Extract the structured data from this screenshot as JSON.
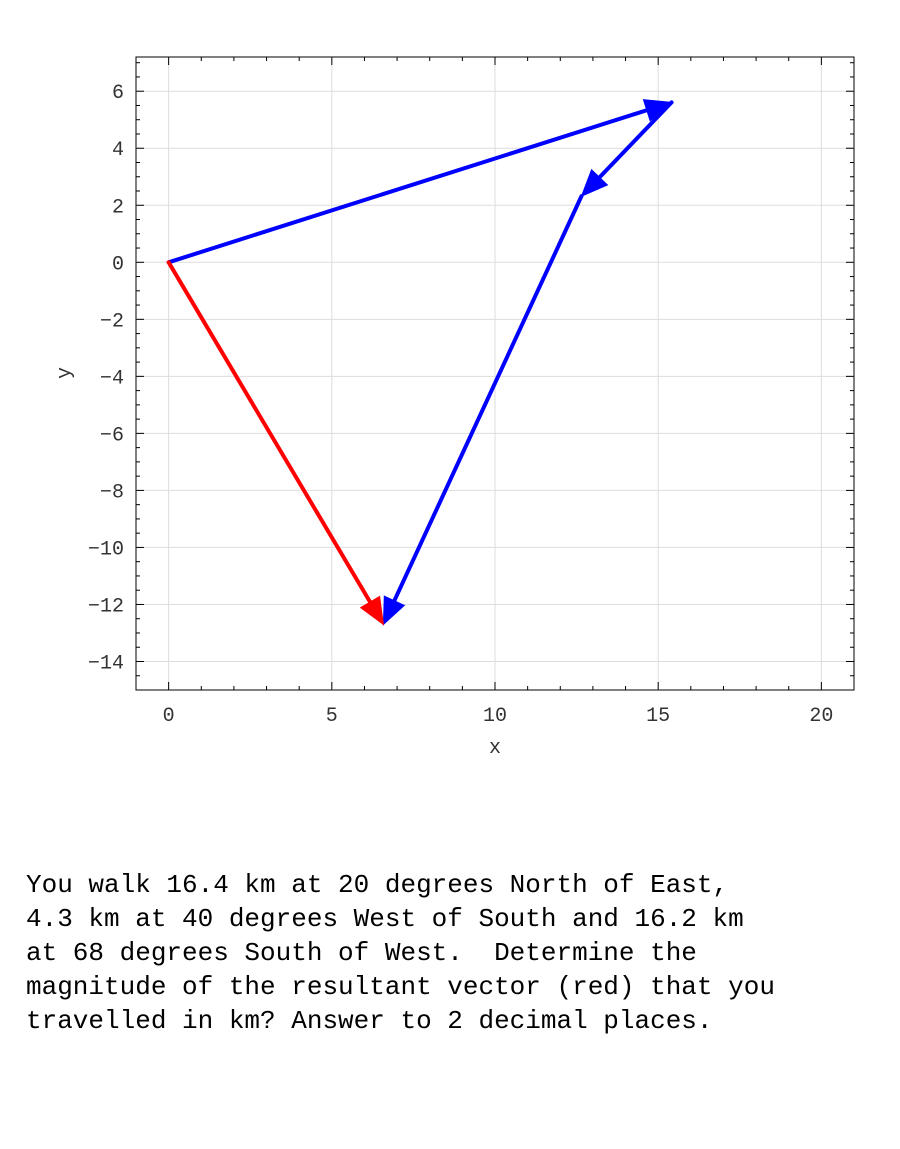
{
  "chart_data": {
    "type": "vector",
    "xlabel": "x",
    "ylabel": "y",
    "xlim": [
      -1,
      21
    ],
    "ylim": [
      -15,
      7.2
    ],
    "x_ticks": [
      0,
      5,
      10,
      15,
      20
    ],
    "y_ticks": [
      6,
      4,
      2,
      0,
      -2,
      -4,
      -6,
      -8,
      -10,
      -12,
      -14
    ],
    "grid": true,
    "vectors": [
      {
        "from": [
          0,
          0
        ],
        "to": [
          15.41,
          5.61
        ],
        "color": "#0000ff"
      },
      {
        "from": [
          15.41,
          5.61
        ],
        "to": [
          12.65,
          2.32
        ],
        "color": "#0000ff"
      },
      {
        "from": [
          12.65,
          2.32
        ],
        "to": [
          6.58,
          -12.7
        ],
        "color": "#0000ff"
      },
      {
        "from": [
          0,
          0
        ],
        "to": [
          6.58,
          -12.7
        ],
        "color": "#ff0000"
      }
    ]
  },
  "question": {
    "lines": [
      "You walk 16.4 km at 20 degrees North of East,",
      "4.3 km at 40 degrees West of South and 16.2 km",
      "at 68 degrees South of West.  Determine the",
      "magnitude of the resultant vector (red) that you",
      "travelled in km? Answer to 2 decimal places."
    ]
  }
}
